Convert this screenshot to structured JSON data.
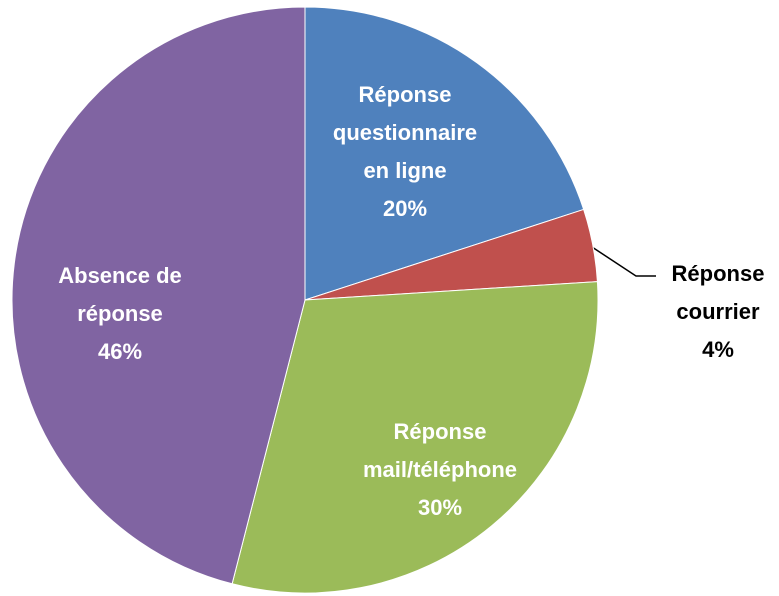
{
  "chart_data": {
    "type": "pie",
    "categories": [
      "Réponse questionnaire en ligne",
      "Réponse courrier",
      "Réponse mail/téléphone",
      "Absence de réponse"
    ],
    "values": [
      20,
      4,
      30,
      46
    ],
    "value_labels": [
      "20%",
      "4%",
      "30%",
      "46%"
    ],
    "colors": [
      "#4f81bd",
      "#c0504d",
      "#9bbb59",
      "#8064a2"
    ]
  }
}
